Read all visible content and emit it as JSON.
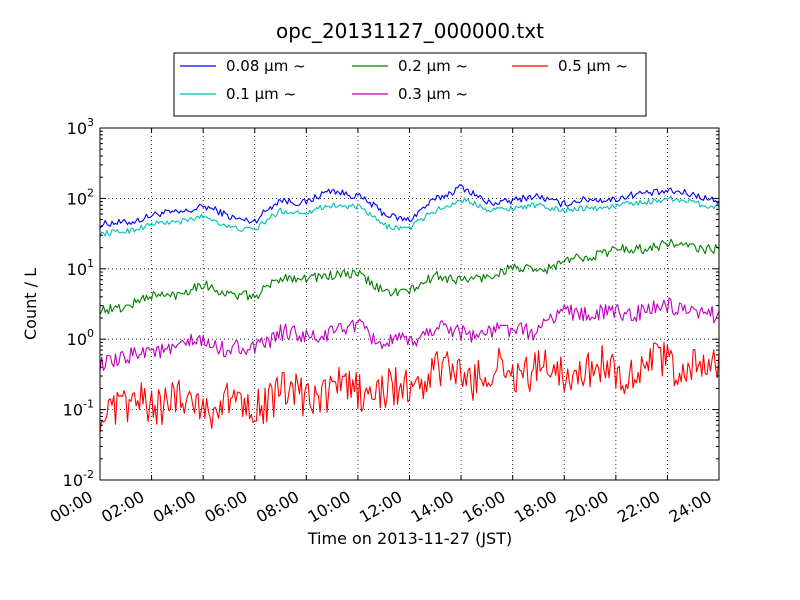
{
  "chart_data": {
    "type": "line",
    "title": "opc_20131127_000000.txt",
    "xlabel": "Time on 2013-11-27 (JST)",
    "ylabel": "Count / L",
    "x_range": [
      "2013-11-27 00:00",
      "2013-11-28 00:00"
    ],
    "x_tick_labels": [
      "00:00",
      "02:00",
      "04:00",
      "06:00",
      "08:00",
      "10:00",
      "12:00",
      "14:00",
      "16:00",
      "18:00",
      "20:00",
      "22:00",
      "24:00"
    ],
    "y_scale": "log",
    "ylim": [
      0.01,
      1000
    ],
    "y_tick_labels": [
      {
        "base": "10",
        "exp": "-2"
      },
      {
        "base": "10",
        "exp": "-1"
      },
      {
        "base": "10",
        "exp": "0"
      },
      {
        "base": "10",
        "exp": "1"
      },
      {
        "base": "10",
        "exp": "2"
      },
      {
        "base": "10",
        "exp": "3"
      }
    ],
    "grid": true,
    "legend_placement": "top-center, above plot",
    "x_hours": [
      0,
      1,
      2,
      3,
      4,
      5,
      6,
      7,
      8,
      9,
      10,
      11,
      12,
      13,
      14,
      15,
      16,
      17,
      18,
      19,
      20,
      21,
      22,
      23,
      24
    ],
    "series": [
      {
        "name": "0.08 μm ~",
        "color": "#0000ff",
        "noise": 0.05,
        "values": [
          42,
          45,
          58,
          62,
          78,
          55,
          48,
          95,
          88,
          130,
          110,
          60,
          50,
          95,
          150,
          85,
          95,
          105,
          85,
          95,
          100,
          115,
          130,
          110,
          95
        ]
      },
      {
        "name": "0.1 μm ~",
        "color": "#00bfbf",
        "noise": 0.04,
        "values": [
          30,
          35,
          42,
          47,
          55,
          40,
          35,
          68,
          62,
          82,
          75,
          42,
          37,
          68,
          95,
          72,
          72,
          80,
          68,
          73,
          78,
          88,
          100,
          88,
          75
        ]
      },
      {
        "name": "0.2 μm ~",
        "color": "#008000",
        "noise": 0.07,
        "values": [
          2.5,
          3.0,
          4.0,
          4.5,
          5.8,
          4.5,
          3.8,
          8.0,
          7.0,
          8.5,
          8.0,
          5.0,
          4.5,
          8.5,
          6.5,
          8.0,
          10,
          9.5,
          12,
          16,
          18,
          20,
          22,
          21,
          18
        ]
      },
      {
        "name": "0.3 μm ~",
        "color": "#bf00bf",
        "noise": 0.12,
        "values": [
          0.45,
          0.55,
          0.7,
          0.75,
          0.9,
          0.75,
          0.7,
          1.3,
          1.0,
          1.3,
          1.5,
          0.9,
          0.85,
          1.6,
          1.2,
          1.3,
          1.3,
          1.4,
          2.5,
          2.4,
          2.2,
          2.6,
          2.8,
          2.4,
          2.0
        ]
      },
      {
        "name": "0.5 μm ~",
        "color": "#ff0000",
        "noise": 0.28,
        "values": [
          0.1,
          0.1,
          0.13,
          0.14,
          0.12,
          0.12,
          0.13,
          0.16,
          0.15,
          0.18,
          0.2,
          0.17,
          0.2,
          0.35,
          0.3,
          0.32,
          0.35,
          0.38,
          0.35,
          0.38,
          0.35,
          0.4,
          0.45,
          0.42,
          0.35
        ]
      }
    ]
  }
}
